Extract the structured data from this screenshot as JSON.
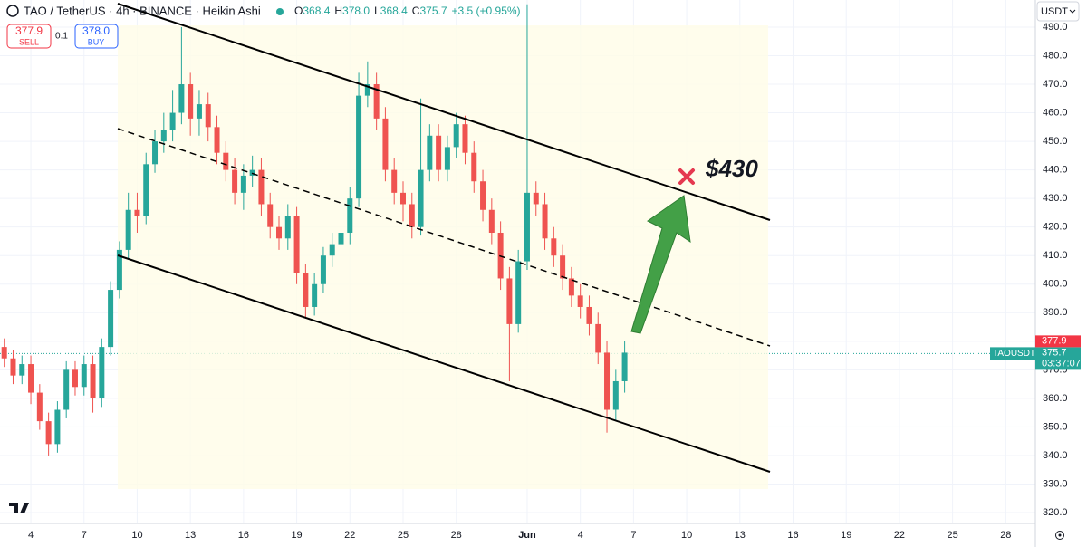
{
  "header": {
    "symbol": "TAO / TetherUS · 4h · BINANCE · Heikin Ashi",
    "ohlc": [
      {
        "label": "O",
        "value": "368.4"
      },
      {
        "label": "H",
        "value": "378.0"
      },
      {
        "label": "L",
        "value": "368.4"
      },
      {
        "label": "C",
        "value": "375.7"
      }
    ],
    "change": "+3.5 (+0.95%)"
  },
  "trade_panel": {
    "sell_price": "377.9",
    "sell_label": "SELL",
    "spread": "0.1",
    "buy_price": "378.0",
    "buy_label": "BUY"
  },
  "currency_button": "USDT",
  "annotation": "$430",
  "chart_data": {
    "type": "candlestick",
    "up_color": "#26a69a",
    "down_color": "#ef5350",
    "grid": true,
    "x": [
      2.5,
      3,
      3.5,
      4,
      4.5,
      5,
      5.5,
      6,
      6.5,
      7,
      7.5,
      8,
      8.5,
      9,
      9.5,
      10,
      10.5,
      11,
      11.5,
      12,
      12.5,
      13,
      13.5,
      14,
      14.5,
      15,
      15.5,
      16,
      16.5,
      17,
      17.5,
      18,
      18.5,
      19,
      19.5,
      20,
      20.5,
      21,
      21.5,
      22,
      22.5,
      23,
      23.5,
      24,
      24.5,
      25,
      25.5,
      26,
      26.5,
      27,
      27.5,
      28,
      28.5,
      29,
      29.5,
      30,
      30.5,
      31,
      31.5,
      32,
      32.5,
      33,
      33.5,
      34,
      34.5,
      35,
      35.5,
      36,
      36.5,
      37,
      37.5
    ],
    "open": [
      378,
      374,
      368,
      372,
      362,
      352,
      344,
      356,
      370,
      364,
      372,
      360,
      378,
      398,
      412,
      426,
      424,
      442,
      450,
      454,
      460,
      470,
      458,
      463,
      455,
      446,
      440,
      432,
      438,
      440,
      428,
      420,
      416,
      424,
      404,
      392,
      400,
      410,
      414,
      418,
      430,
      466,
      470,
      458,
      440,
      432,
      428,
      420,
      440,
      452,
      440,
      448,
      456,
      446,
      436,
      426,
      418,
      402,
      386,
      408,
      432,
      428,
      416,
      410,
      402,
      396,
      392,
      386,
      376,
      356,
      366
    ],
    "high": [
      381,
      377,
      375,
      375,
      365,
      355,
      359,
      373,
      373,
      375,
      375,
      381,
      401,
      415,
      432,
      432,
      446,
      454,
      460,
      468,
      490,
      474,
      468,
      467,
      459,
      450,
      444,
      442,
      445,
      444,
      432,
      424,
      428,
      427,
      407,
      404,
      413,
      418,
      422,
      434,
      474,
      478,
      474,
      462,
      444,
      436,
      432,
      465,
      456,
      456,
      452,
      460,
      459,
      450,
      440,
      430,
      422,
      406,
      412,
      498,
      436,
      432,
      420,
      414,
      406,
      400,
      396,
      390,
      380,
      370,
      380
    ],
    "low": [
      371,
      365,
      365,
      358,
      349,
      340,
      341,
      353,
      361,
      361,
      355,
      357,
      375,
      395,
      409,
      418,
      421,
      439,
      446,
      450,
      456,
      452,
      452,
      450,
      442,
      436,
      428,
      426,
      434,
      424,
      416,
      412,
      412,
      400,
      388,
      389,
      397,
      406,
      410,
      414,
      427,
      462,
      454,
      436,
      428,
      422,
      416,
      417,
      436,
      436,
      436,
      444,
      442,
      432,
      422,
      414,
      398,
      366,
      383,
      405,
      424,
      412,
      406,
      398,
      392,
      388,
      382,
      372,
      348,
      352,
      362
    ],
    "close": [
      374,
      368,
      372,
      362,
      352,
      344,
      356,
      370,
      364,
      372,
      360,
      378,
      398,
      412,
      426,
      424,
      442,
      450,
      454,
      460,
      470,
      458,
      463,
      455,
      446,
      440,
      432,
      438,
      440,
      428,
      420,
      416,
      424,
      404,
      392,
      400,
      410,
      414,
      418,
      430,
      466,
      470,
      458,
      440,
      432,
      428,
      420,
      440,
      452,
      440,
      448,
      456,
      446,
      436,
      426,
      418,
      402,
      386,
      408,
      432,
      428,
      416,
      410,
      402,
      396,
      392,
      386,
      376,
      356,
      366,
      376
    ],
    "xlim": [
      2.26,
      60.67
    ],
    "xticks": [
      4,
      7,
      10,
      13,
      16,
      19,
      22,
      25,
      28,
      {
        "value": 32,
        "label": "Jun"
      },
      {
        "value": 35,
        "label": "4"
      },
      {
        "value": 38,
        "label": "7"
      },
      {
        "value": 41,
        "label": "10"
      },
      {
        "value": 44,
        "label": "13"
      },
      {
        "value": 47,
        "label": "16"
      },
      {
        "value": 50,
        "label": "19"
      },
      {
        "value": 53,
        "label": "22"
      },
      {
        "value": 56,
        "label": "25"
      },
      {
        "value": 59,
        "label": "28"
      }
    ],
    "ylim": [
      316.2,
      499.5
    ],
    "yticks": [
      {
        "value": 320,
        "label": "320.0"
      },
      {
        "value": 330,
        "label": "330.0"
      },
      {
        "value": 340,
        "label": "340.0"
      },
      {
        "value": 350,
        "label": "350.0"
      },
      {
        "value": 360,
        "label": "360.0"
      },
      {
        "value": 370,
        "label": "370.0"
      },
      {
        "value": 380,
        "label": "380.0"
      },
      {
        "value": 390,
        "label": "390.0"
      },
      {
        "value": 400,
        "label": "400.0"
      },
      {
        "value": 410,
        "label": "410.0"
      },
      {
        "value": 420,
        "label": "420.0"
      },
      {
        "value": 430,
        "label": "430.0"
      },
      {
        "value": 440,
        "label": "440.0"
      },
      {
        "value": 450,
        "label": "450.0"
      },
      {
        "value": 460,
        "label": "460.0"
      },
      {
        "value": 470,
        "label": "470.0"
      },
      {
        "value": 480,
        "label": "480.0"
      },
      {
        "value": 490,
        "label": "490.0"
      }
    ],
    "last_price": {
      "symbol": "TAOUSDT",
      "value": 375.7,
      "countdown": "03:37:07",
      "color": "#26a69a"
    },
    "ask_price": {
      "value": 377.9,
      "color": "#f23645"
    }
  }
}
